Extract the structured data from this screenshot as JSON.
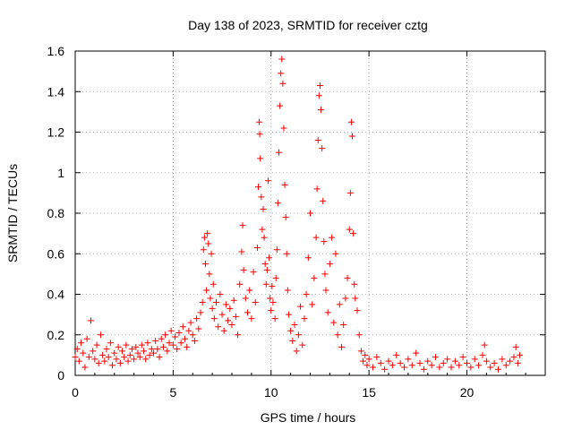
{
  "chart_data": {
    "type": "scatter",
    "title": "Day 138 of 2023, SRMTID for receiver cztg",
    "xlabel": "GPS time / hours",
    "ylabel": "SRMTID / TECUs",
    "xlim": [
      0,
      24
    ],
    "ylim": [
      0,
      1.6
    ],
    "xticks": [
      0,
      5,
      10,
      15,
      20
    ],
    "xtick_labels": [
      "0",
      "5",
      "10",
      "15",
      "20"
    ],
    "yticks": [
      0,
      0.2,
      0.4,
      0.6,
      0.8,
      1.0,
      1.2,
      1.4,
      1.6
    ],
    "ytick_labels": [
      "0",
      "0.2",
      "0.4",
      "0.6",
      "0.8",
      "1",
      "1.2",
      "1.4",
      "1.6"
    ],
    "grid": true,
    "marker": "+",
    "color": "#ff0000",
    "series": [
      {
        "name": "SRMTID",
        "points": [
          [
            0.0,
            0.09
          ],
          [
            0.1,
            0.13
          ],
          [
            0.2,
            0.07
          ],
          [
            0.3,
            0.16
          ],
          [
            0.4,
            0.11
          ],
          [
            0.5,
            0.04
          ],
          [
            0.6,
            0.18
          ],
          [
            0.7,
            0.09
          ],
          [
            0.8,
            0.27
          ],
          [
            0.9,
            0.12
          ],
          [
            1.0,
            0.08
          ],
          [
            1.1,
            0.15
          ],
          [
            1.2,
            0.06
          ],
          [
            1.3,
            0.2
          ],
          [
            1.4,
            0.1
          ],
          [
            1.5,
            0.07
          ],
          [
            1.6,
            0.13
          ],
          [
            1.7,
            0.09
          ],
          [
            1.8,
            0.16
          ],
          [
            1.9,
            0.05
          ],
          [
            2.0,
            0.11
          ],
          [
            2.1,
            0.08
          ],
          [
            2.2,
            0.14
          ],
          [
            2.3,
            0.06
          ],
          [
            2.4,
            0.12
          ],
          [
            2.5,
            0.09
          ],
          [
            2.6,
            0.15
          ],
          [
            2.7,
            0.07
          ],
          [
            2.8,
            0.1
          ],
          [
            2.9,
            0.13
          ],
          [
            3.0,
            0.08
          ],
          [
            3.1,
            0.14
          ],
          [
            3.2,
            0.11
          ],
          [
            3.3,
            0.09
          ],
          [
            3.4,
            0.15
          ],
          [
            3.5,
            0.12
          ],
          [
            3.6,
            0.08
          ],
          [
            3.7,
            0.16
          ],
          [
            3.8,
            0.1
          ],
          [
            3.9,
            0.13
          ],
          [
            4.0,
            0.11
          ],
          [
            4.1,
            0.17
          ],
          [
            4.2,
            0.13
          ],
          [
            4.3,
            0.09
          ],
          [
            4.4,
            0.18
          ],
          [
            4.5,
            0.14
          ],
          [
            4.6,
            0.2
          ],
          [
            4.7,
            0.12
          ],
          [
            4.8,
            0.16
          ],
          [
            4.9,
            0.22
          ],
          [
            5.0,
            0.15
          ],
          [
            5.1,
            0.19
          ],
          [
            5.2,
            0.13
          ],
          [
            5.3,
            0.21
          ],
          [
            5.4,
            0.16
          ],
          [
            5.5,
            0.24
          ],
          [
            5.6,
            0.18
          ],
          [
            5.7,
            0.14
          ],
          [
            5.8,
            0.22
          ],
          [
            5.9,
            0.26
          ],
          [
            6.0,
            0.2
          ],
          [
            6.1,
            0.17
          ],
          [
            6.2,
            0.28
          ],
          [
            6.3,
            0.23
          ],
          [
            6.4,
            0.31
          ],
          [
            6.5,
            0.36
          ],
          [
            6.55,
            0.62
          ],
          [
            6.6,
            0.68
          ],
          [
            6.65,
            0.55
          ],
          [
            6.7,
            0.42
          ],
          [
            6.75,
            0.7
          ],
          [
            6.8,
            0.65
          ],
          [
            6.85,
            0.5
          ],
          [
            6.9,
            0.38
          ],
          [
            6.95,
            0.6
          ],
          [
            7.0,
            0.33
          ],
          [
            7.05,
            0.45
          ],
          [
            7.1,
            0.28
          ],
          [
            7.2,
            0.36
          ],
          [
            7.3,
            0.24
          ],
          [
            7.4,
            0.4
          ],
          [
            7.5,
            0.3
          ],
          [
            7.6,
            0.22
          ],
          [
            7.7,
            0.35
          ],
          [
            7.8,
            0.27
          ],
          [
            7.9,
            0.33
          ],
          [
            8.0,
            0.25
          ],
          [
            8.1,
            0.37
          ],
          [
            8.2,
            0.29
          ],
          [
            8.3,
            0.2
          ],
          [
            8.4,
            0.45
          ],
          [
            8.5,
            0.61
          ],
          [
            8.55,
            0.74
          ],
          [
            8.6,
            0.52
          ],
          [
            8.7,
            0.38
          ],
          [
            8.8,
            0.31
          ],
          [
            8.9,
            0.42
          ],
          [
            9.0,
            0.28
          ],
          [
            9.1,
            0.51
          ],
          [
            9.2,
            0.36
          ],
          [
            9.3,
            0.63
          ],
          [
            9.35,
            0.93
          ],
          [
            9.4,
            1.25
          ],
          [
            9.42,
            1.19
          ],
          [
            9.45,
            1.07
          ],
          [
            9.5,
            0.88
          ],
          [
            9.55,
            0.72
          ],
          [
            9.6,
            0.82
          ],
          [
            9.65,
            0.68
          ],
          [
            9.7,
            0.55
          ],
          [
            9.75,
            0.45
          ],
          [
            9.8,
            0.52
          ],
          [
            9.85,
            0.96
          ],
          [
            9.9,
            0.58
          ],
          [
            9.95,
            0.38
          ],
          [
            10.0,
            0.32
          ],
          [
            10.05,
            0.44
          ],
          [
            10.1,
            0.36
          ],
          [
            10.2,
            0.28
          ],
          [
            10.25,
            0.48
          ],
          [
            10.3,
            0.62
          ],
          [
            10.35,
            0.85
          ],
          [
            10.4,
            1.1
          ],
          [
            10.45,
            1.33
          ],
          [
            10.5,
            1.49
          ],
          [
            10.55,
            1.56
          ],
          [
            10.6,
            1.44
          ],
          [
            10.65,
            1.22
          ],
          [
            10.7,
            0.94
          ],
          [
            10.75,
            0.78
          ],
          [
            10.8,
            0.6
          ],
          [
            10.85,
            0.42
          ],
          [
            10.9,
            0.3
          ],
          [
            11.0,
            0.22
          ],
          [
            11.1,
            0.17
          ],
          [
            11.2,
            0.25
          ],
          [
            11.3,
            0.12
          ],
          [
            11.4,
            0.2
          ],
          [
            11.5,
            0.34
          ],
          [
            11.6,
            0.15
          ],
          [
            11.7,
            0.28
          ],
          [
            11.8,
            0.4
          ],
          [
            11.9,
            0.58
          ],
          [
            12.0,
            0.8
          ],
          [
            12.1,
            0.35
          ],
          [
            12.2,
            0.48
          ],
          [
            12.3,
            0.68
          ],
          [
            12.35,
            0.92
          ],
          [
            12.4,
            1.16
          ],
          [
            12.45,
            1.38
          ],
          [
            12.5,
            1.43
          ],
          [
            12.55,
            1.31
          ],
          [
            12.6,
            1.12
          ],
          [
            12.65,
            0.86
          ],
          [
            12.7,
            0.66
          ],
          [
            12.75,
            0.5
          ],
          [
            12.8,
            0.42
          ],
          [
            12.9,
            0.31
          ],
          [
            13.0,
            0.55
          ],
          [
            13.1,
            0.68
          ],
          [
            13.2,
            0.26
          ],
          [
            13.3,
            0.6
          ],
          [
            13.4,
            0.2
          ],
          [
            13.5,
            0.35
          ],
          [
            13.6,
            0.14
          ],
          [
            13.7,
            0.25
          ],
          [
            13.8,
            0.38
          ],
          [
            13.9,
            0.48
          ],
          [
            14.0,
            0.72
          ],
          [
            14.05,
            0.9
          ],
          [
            14.1,
            1.25
          ],
          [
            14.15,
            1.18
          ],
          [
            14.2,
            0.7
          ],
          [
            14.25,
            0.45
          ],
          [
            14.3,
            0.38
          ],
          [
            14.4,
            0.32
          ],
          [
            14.5,
            0.2
          ],
          [
            14.6,
            0.12
          ],
          [
            14.7,
            0.07
          ],
          [
            14.8,
            0.1
          ],
          [
            14.9,
            0.05
          ],
          [
            15.0,
            0.08
          ],
          [
            15.2,
            0.04
          ],
          [
            15.4,
            0.09
          ],
          [
            15.6,
            0.06
          ],
          [
            15.8,
            0.03
          ],
          [
            16.0,
            0.07
          ],
          [
            16.2,
            0.05
          ],
          [
            16.4,
            0.1
          ],
          [
            16.6,
            0.06
          ],
          [
            16.8,
            0.04
          ],
          [
            17.0,
            0.08
          ],
          [
            17.2,
            0.05
          ],
          [
            17.4,
            0.11
          ],
          [
            17.6,
            0.06
          ],
          [
            17.8,
            0.03
          ],
          [
            18.0,
            0.07
          ],
          [
            18.2,
            0.05
          ],
          [
            18.4,
            0.09
          ],
          [
            18.6,
            0.04
          ],
          [
            18.8,
            0.06
          ],
          [
            19.0,
            0.08
          ],
          [
            19.2,
            0.04
          ],
          [
            19.4,
            0.07
          ],
          [
            19.6,
            0.05
          ],
          [
            19.8,
            0.09
          ],
          [
            20.0,
            0.06
          ],
          [
            20.2,
            0.04
          ],
          [
            20.4,
            0.08
          ],
          [
            20.6,
            0.05
          ],
          [
            20.8,
            0.1
          ],
          [
            20.9,
            0.15
          ],
          [
            21.0,
            0.07
          ],
          [
            21.2,
            0.04
          ],
          [
            21.4,
            0.06
          ],
          [
            21.6,
            0.03
          ],
          [
            21.8,
            0.08
          ],
          [
            22.0,
            0.05
          ],
          [
            22.2,
            0.07
          ],
          [
            22.4,
            0.09
          ],
          [
            22.5,
            0.14
          ],
          [
            22.6,
            0.06
          ],
          [
            22.7,
            0.1
          ]
        ]
      }
    ]
  }
}
